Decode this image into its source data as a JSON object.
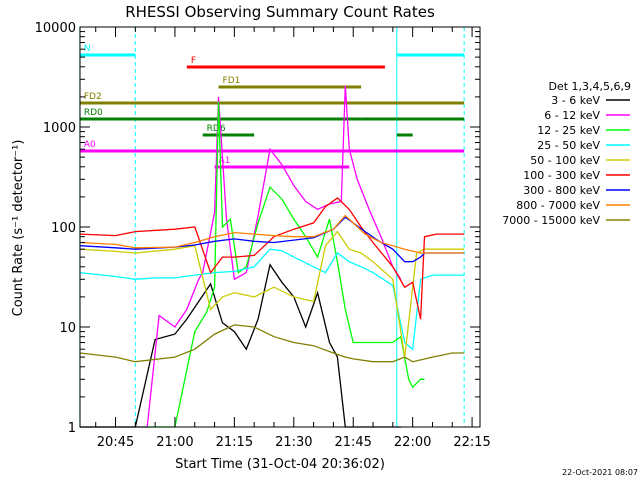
{
  "chart_data": {
    "type": "line",
    "title": "RHESSI Observing Summary Count Rates",
    "xlabel": "Start Time (31-Oct-04 20:36:02)",
    "ylabel": "Count Rate (s⁻¹ detector⁻¹)",
    "ylim": [
      1,
      10000
    ],
    "yscale": "log",
    "xlim": [
      "20:36:02",
      "22:17:00"
    ],
    "x_ticks": [
      "20:45",
      "21:00",
      "21:15",
      "21:30",
      "21:45",
      "22:00",
      "22:15"
    ],
    "y_ticks": [
      "1",
      "10",
      "100",
      "1000",
      "10000"
    ],
    "footer": "22-Oct-2021 08:07",
    "legend_title": "Det 1,3,4,5,6,9",
    "legend_position": "right",
    "series": [
      {
        "name": "3 - 6 keV",
        "color": "#000000",
        "x": [
          "20:36",
          "20:50",
          "20:55",
          "21:00",
          "21:03",
          "21:06",
          "21:09",
          "21:12",
          "21:15",
          "21:18",
          "21:21",
          "21:24",
          "21:27",
          "21:30",
          "21:33",
          "21:36",
          "21:39",
          "21:41",
          "21:43",
          "21:45",
          "21:48",
          "21:51",
          "21:55",
          "21:57"
        ],
        "y": [
          0.0,
          0.0,
          7.5,
          8.5,
          12,
          18,
          27,
          11,
          9,
          6,
          12,
          42,
          28,
          20,
          10,
          22,
          7,
          5,
          0,
          0,
          0,
          0,
          0,
          0
        ]
      },
      {
        "name": "6 - 12 keV",
        "color": "#ff00ff",
        "x": [
          "20:36",
          "20:53",
          "20:56",
          "21:00",
          "21:03",
          "21:06",
          "21:07",
          "21:10",
          "21:11",
          "21:13",
          "21:15",
          "21:18",
          "21:21",
          "21:24",
          "21:27",
          "21:30",
          "21:33",
          "21:36",
          "21:39",
          "21:42",
          "21:43",
          "21:44",
          "21:46",
          "21:49",
          "21:52",
          "21:55",
          "21:57"
        ],
        "y": [
          0,
          0,
          13,
          10,
          15,
          30,
          35,
          140,
          2000,
          120,
          30,
          35,
          130,
          600,
          420,
          260,
          180,
          150,
          170,
          180,
          2600,
          600,
          300,
          150,
          80,
          40,
          30
        ]
      },
      {
        "name": "12 - 25 keV",
        "color": "#00ff00",
        "x": [
          "20:36",
          "21:00",
          "21:05",
          "21:08",
          "21:10",
          "21:11",
          "21:12",
          "21:14",
          "21:16",
          "21:18",
          "21:21",
          "21:24",
          "21:27",
          "21:30",
          "21:33",
          "21:36",
          "21:39",
          "21:41",
          "21:43",
          "21:45",
          "21:48",
          "21:51",
          "21:55",
          "21:57",
          "21:59",
          "22:00",
          "22:02",
          "22:03"
        ],
        "y": [
          0,
          0,
          9,
          14,
          25,
          1800,
          100,
          120,
          35,
          40,
          110,
          250,
          190,
          120,
          80,
          50,
          120,
          45,
          15,
          7,
          7,
          7,
          7,
          8,
          3,
          2.5,
          3,
          3
        ]
      },
      {
        "name": "25 - 50 keV",
        "color": "#00ffff",
        "x": [
          "20:36",
          "20:45",
          "20:50",
          "20:55",
          "21:00",
          "21:05",
          "21:10",
          "21:15",
          "21:20",
          "21:24",
          "21:27",
          "21:30",
          "21:35",
          "21:38",
          "21:41",
          "21:44",
          "21:47",
          "21:50",
          "21:55",
          "21:58",
          "22:00",
          "22:02",
          "22:05",
          "22:10",
          "22:13"
        ],
        "y": [
          35,
          32,
          30,
          31,
          31,
          33,
          35,
          36,
          40,
          60,
          58,
          50,
          40,
          35,
          55,
          45,
          40,
          35,
          26,
          7,
          6,
          30,
          33,
          33,
          33
        ]
      },
      {
        "name": "50 - 100 keV",
        "color": "#cccc00",
        "x": [
          "20:36",
          "20:45",
          "20:50",
          "21:00",
          "21:05",
          "21:09",
          "21:12",
          "21:15",
          "21:20",
          "21:25",
          "21:30",
          "21:35",
          "21:38",
          "21:41",
          "21:44",
          "21:47",
          "21:50",
          "21:55",
          "21:58",
          "22:01",
          "22:03",
          "22:06",
          "22:10",
          "22:13"
        ],
        "y": [
          60,
          57,
          55,
          60,
          65,
          15,
          20,
          22,
          20,
          25,
          20,
          18,
          65,
          90,
          60,
          55,
          45,
          30,
          5,
          55,
          60,
          60,
          60,
          60
        ]
      },
      {
        "name": "100 - 300 keV",
        "color": "#ff0000",
        "x": [
          "20:36",
          "20:45",
          "20:50",
          "21:00",
          "21:05",
          "21:09",
          "21:12",
          "21:15",
          "21:20",
          "21:25",
          "21:30",
          "21:35",
          "21:38",
          "21:41",
          "21:44",
          "21:47",
          "21:50",
          "21:55",
          "21:58",
          "22:00",
          "22:02",
          "22:03",
          "22:06",
          "22:10",
          "22:13"
        ],
        "y": [
          85,
          82,
          90,
          95,
          100,
          35,
          50,
          50,
          52,
          80,
          95,
          110,
          160,
          195,
          150,
          100,
          70,
          40,
          25,
          28,
          12,
          80,
          85,
          85,
          85
        ]
      },
      {
        "name": "300 - 800 keV",
        "color": "#0000ff",
        "x": [
          "20:36",
          "20:45",
          "20:50",
          "21:00",
          "21:05",
          "21:10",
          "21:15",
          "21:20",
          "21:25",
          "21:30",
          "21:35",
          "21:40",
          "21:43",
          "21:45",
          "21:48",
          "21:52",
          "21:55",
          "21:58",
          "22:00",
          "22:02",
          "22:03",
          "22:05",
          "22:10",
          "22:13"
        ],
        "y": [
          65,
          62,
          60,
          63,
          66,
          72,
          76,
          72,
          70,
          74,
          78,
          95,
          125,
          110,
          90,
          70,
          60,
          45,
          45,
          50,
          55,
          55,
          55,
          55
        ]
      },
      {
        "name": "800 - 7000 keV",
        "color": "#ff8000",
        "x": [
          "20:36",
          "20:45",
          "20:50",
          "21:00",
          "21:05",
          "21:10",
          "21:15",
          "21:20",
          "21:25",
          "21:30",
          "21:35",
          "21:40",
          "21:43",
          "21:45",
          "21:48",
          "21:52",
          "21:55",
          "21:58",
          "22:02",
          "22:05",
          "22:10",
          "22:13"
        ],
        "y": [
          70,
          67,
          62,
          63,
          70,
          80,
          88,
          85,
          82,
          80,
          80,
          95,
          130,
          110,
          85,
          70,
          65,
          60,
          55,
          55,
          55,
          55
        ]
      },
      {
        "name": "7000 - 15000 keV",
        "color": "#808000",
        "x": [
          "20:36",
          "20:45",
          "20:50",
          "21:00",
          "21:05",
          "21:10",
          "21:15",
          "21:20",
          "21:25",
          "21:30",
          "21:35",
          "21:40",
          "21:43",
          "21:45",
          "21:50",
          "21:55",
          "21:58",
          "22:00",
          "22:05",
          "22:10",
          "22:13"
        ],
        "y": [
          5.5,
          5,
          4.5,
          5,
          6,
          8.5,
          10.5,
          10,
          8,
          7,
          6.5,
          5.5,
          5,
          4.8,
          4.5,
          4.5,
          5,
          4.5,
          5,
          5.5,
          5.5
        ]
      }
    ],
    "flag_bars": [
      {
        "label": "N",
        "color": "#00ffff",
        "y_frac": 0.035,
        "segments": [
          [
            "20:36",
            "20:50"
          ],
          [
            "21:56",
            "22:13"
          ]
        ]
      },
      {
        "label": "F",
        "color": "#ff0000",
        "y_frac": 0.05,
        "segments": [
          [
            "21:03",
            "21:53"
          ]
        ]
      },
      {
        "label": "FD1",
        "color": "#808000",
        "y_frac": 0.075,
        "segments": [
          [
            "21:11",
            "21:47"
          ]
        ]
      },
      {
        "label": "FD2",
        "color": "#808000",
        "y_frac": 0.095,
        "segments": [
          [
            "20:36",
            "22:13"
          ]
        ]
      },
      {
        "label": "RD0",
        "color": "#008000",
        "y_frac": 0.115,
        "segments": [
          [
            "20:36",
            "21:00"
          ],
          [
            "21:00",
            "21:47"
          ],
          [
            "21:47",
            "21:56"
          ],
          [
            "21:56",
            "22:13"
          ]
        ]
      },
      {
        "label": "RD6",
        "color": "#008000",
        "y_frac": 0.135,
        "segments": [
          [
            "21:07",
            "21:20"
          ],
          [
            "21:56",
            "22:00"
          ]
        ]
      },
      {
        "label": "A0",
        "color": "#ff00ff",
        "y_frac": 0.155,
        "segments": [
          [
            "20:36",
            "22:13"
          ]
        ]
      },
      {
        "label": "A1",
        "color": "#ff00ff",
        "y_frac": 0.175,
        "segments": [
          [
            "21:10",
            "21:44"
          ]
        ]
      }
    ],
    "vertical_markers": [
      {
        "time": "20:36",
        "color": "#00ffff",
        "style": "solid"
      },
      {
        "time": "20:50",
        "color": "#00ffff",
        "style": "dashed"
      },
      {
        "time": "21:56",
        "color": "#00ffff",
        "style": "solid"
      },
      {
        "time": "22:13",
        "color": "#00ffff",
        "style": "dashed"
      }
    ]
  }
}
